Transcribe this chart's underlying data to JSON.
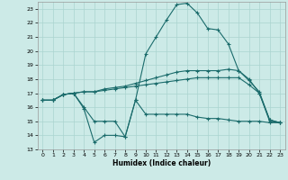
{
  "xlabel": "Humidex (Indice chaleur)",
  "background_color": "#cceae7",
  "grid_color": "#aad4d0",
  "line_color": "#1a6b6b",
  "xlim": [
    -0.5,
    23.5
  ],
  "ylim": [
    13,
    23.5
  ],
  "xticks": [
    0,
    1,
    2,
    3,
    4,
    5,
    6,
    7,
    8,
    9,
    10,
    11,
    12,
    13,
    14,
    15,
    16,
    17,
    18,
    19,
    20,
    21,
    22,
    23
  ],
  "yticks": [
    13,
    14,
    15,
    16,
    17,
    18,
    19,
    20,
    21,
    22,
    23
  ],
  "line1_upper": {
    "x": [
      0,
      1,
      2,
      3,
      4,
      5,
      6,
      7,
      8,
      9,
      10,
      11,
      12,
      13,
      14,
      15,
      16,
      17,
      18,
      19,
      20,
      21,
      22,
      23
    ],
    "y": [
      16.5,
      16.5,
      16.9,
      17.0,
      16.0,
      15.0,
      15.0,
      15.0,
      13.9,
      16.5,
      19.8,
      21.0,
      22.2,
      23.3,
      23.4,
      22.7,
      21.6,
      21.5,
      20.5,
      18.6,
      17.9,
      17.1,
      15.1,
      14.9
    ]
  },
  "line2_upper_mid": {
    "x": [
      0,
      1,
      2,
      3,
      4,
      5,
      6,
      7,
      8,
      9,
      10,
      11,
      12,
      13,
      14,
      15,
      16,
      17,
      18,
      19,
      20,
      21,
      22,
      23
    ],
    "y": [
      16.5,
      16.5,
      16.9,
      17.0,
      17.1,
      17.1,
      17.3,
      17.4,
      17.5,
      17.7,
      17.9,
      18.1,
      18.3,
      18.5,
      18.6,
      18.6,
      18.6,
      18.6,
      18.7,
      18.6,
      18.0,
      17.0,
      15.1,
      14.9
    ]
  },
  "line3_lower_mid": {
    "x": [
      0,
      1,
      2,
      3,
      4,
      5,
      6,
      7,
      8,
      9,
      10,
      11,
      12,
      13,
      14,
      15,
      16,
      17,
      18,
      19,
      20,
      21,
      22,
      23
    ],
    "y": [
      16.5,
      16.5,
      16.9,
      17.0,
      17.1,
      17.1,
      17.2,
      17.3,
      17.4,
      17.5,
      17.6,
      17.7,
      17.8,
      17.9,
      18.0,
      18.1,
      18.1,
      18.1,
      18.1,
      18.1,
      17.6,
      17.0,
      15.0,
      14.9
    ]
  },
  "line4_lower": {
    "x": [
      0,
      1,
      2,
      3,
      4,
      5,
      6,
      7,
      8,
      9,
      10,
      11,
      12,
      13,
      14,
      15,
      16,
      17,
      18,
      19,
      20,
      21,
      22,
      23
    ],
    "y": [
      16.5,
      16.5,
      16.9,
      17.0,
      15.9,
      13.5,
      14.0,
      14.0,
      13.9,
      16.5,
      15.5,
      15.5,
      15.5,
      15.5,
      15.5,
      15.3,
      15.2,
      15.2,
      15.1,
      15.0,
      15.0,
      15.0,
      14.9,
      14.9
    ]
  }
}
